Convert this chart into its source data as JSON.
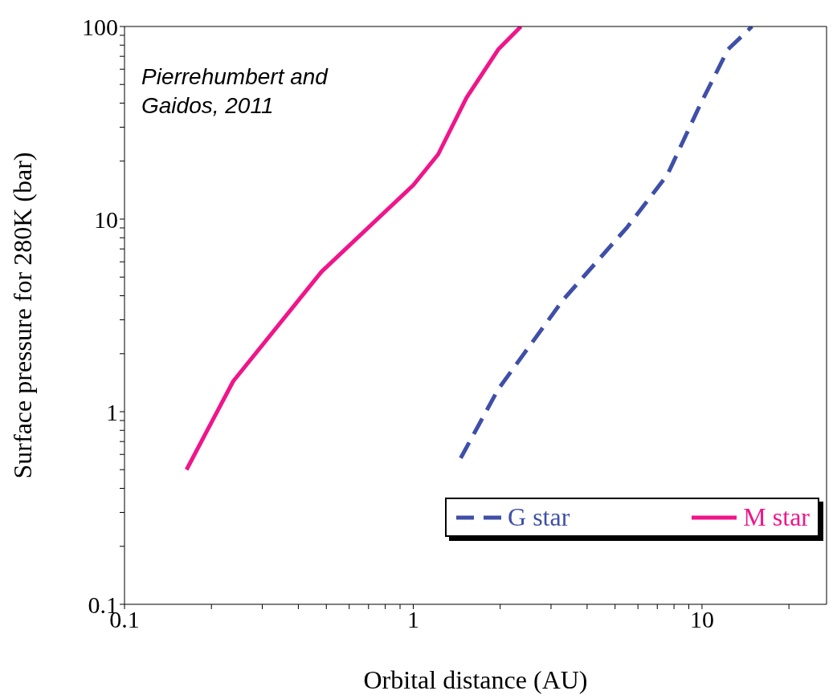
{
  "chart_data": {
    "type": "line",
    "xlabel": "Orbital distance (AU)",
    "ylabel": "Surface pressure for 280K (bar)",
    "log": "xy",
    "xlim": [
      0.1,
      27
    ],
    "ylim": [
      0.1,
      100
    ],
    "xticks": [
      0.1,
      {
        "value": 0.2,
        "label": null
      },
      {
        "value": 0.3,
        "label": null
      },
      {
        "value": 0.4,
        "label": null
      },
      {
        "value": 0.5,
        "label": null
      },
      {
        "value": 0.6,
        "label": null
      },
      {
        "value": 0.7,
        "label": null
      },
      {
        "value": 0.8,
        "label": null
      },
      {
        "value": 0.9,
        "label": null
      },
      1,
      {
        "value": 2,
        "label": null
      },
      {
        "value": 3,
        "label": null
      },
      {
        "value": 4,
        "label": null
      },
      {
        "value": 5,
        "label": null
      },
      {
        "value": 6,
        "label": null
      },
      {
        "value": 7,
        "label": null
      },
      {
        "value": 8,
        "label": null
      },
      {
        "value": 9,
        "label": null
      },
      10,
      {
        "value": 20,
        "label": null
      }
    ],
    "yticks": [
      0.1,
      {
        "value": 0.2,
        "label": null
      },
      {
        "value": 0.3,
        "label": null
      },
      {
        "value": 0.4,
        "label": null
      },
      {
        "value": 0.5,
        "label": null
      },
      {
        "value": 0.6,
        "label": null
      },
      {
        "value": 0.7,
        "label": null
      },
      {
        "value": 0.8,
        "label": null
      },
      {
        "value": 0.9,
        "label": null
      },
      1,
      {
        "value": 2,
        "label": null
      },
      {
        "value": 3,
        "label": null
      },
      {
        "value": 4,
        "label": null
      },
      {
        "value": 5,
        "label": null
      },
      {
        "value": 6,
        "label": null
      },
      {
        "value": 7,
        "label": null
      },
      {
        "value": 8,
        "label": null
      },
      {
        "value": 9,
        "label": null
      },
      10,
      {
        "value": 20,
        "label": null
      },
      {
        "value": 30,
        "label": null
      },
      {
        "value": 40,
        "label": null
      },
      {
        "value": 50,
        "label": null
      },
      {
        "value": 60,
        "label": null
      },
      {
        "value": 70,
        "label": null
      },
      {
        "value": 80,
        "label": null
      },
      {
        "value": 90,
        "label": null
      },
      100
    ],
    "series": [
      {
        "name": "G star",
        "color": "#3f4fa8",
        "line_style": "dashed",
        "x": [
          1.46,
          1.97,
          3.3,
          5.51,
          7.59,
          9.81,
          12.3,
          14.9
        ],
        "values": [
          0.575,
          1.31,
          3.8,
          9.08,
          17.0,
          38.7,
          76,
          100
        ]
      },
      {
        "name": "M star",
        "color": "#f0158a",
        "line_style": "solid",
        "x": [
          0.164,
          0.238,
          0.481,
          1.0,
          1.22,
          1.53,
          1.97,
          2.36
        ],
        "values": [
          0.5,
          1.44,
          5.33,
          15,
          21.7,
          42.7,
          76,
          100
        ]
      }
    ],
    "legend": "bottom right",
    "grid": false,
    "annotations": [
      "Pierrehumbert and Gaidos, 2011"
    ]
  }
}
